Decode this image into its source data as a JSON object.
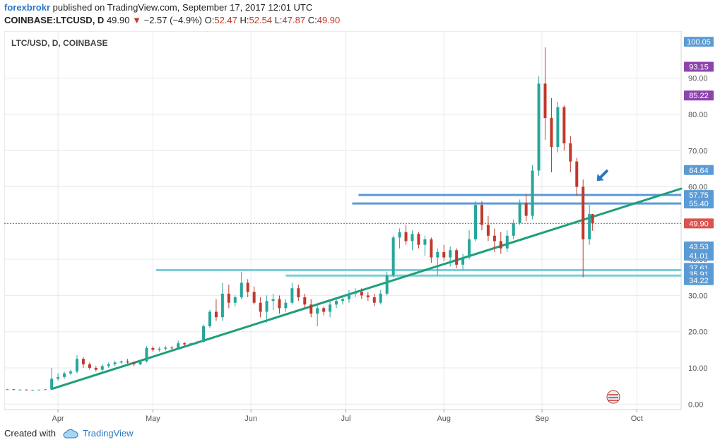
{
  "header": {
    "author": "forexbrokr",
    "published_text": "published on TradingView.com, September 17, 2017 12:01 UTC"
  },
  "quote": {
    "symbol": "COINBASE:LTCUSD, D",
    "last": "49.90",
    "change_arrow": "▼",
    "change": "−2.57 (−4.9%)",
    "open_label": "O:",
    "open": "52.47",
    "high_label": "H:",
    "high": "52.54",
    "low_label": "L:",
    "low": "47.87",
    "close_label": "C:",
    "close": "49.90"
  },
  "footer": {
    "created_with": "Created with",
    "brand": "TradingView",
    "brand_icon": "tradingview-cloud-icon"
  },
  "colors": {
    "bull": "#26a69a",
    "bear": "#c0392b",
    "trendline": "#1f9e7a",
    "resistance": "#5b9bd5",
    "support": "#7ccfd6",
    "price_line": "#e74c3c",
    "badge_blue": "#5b9bd5",
    "badge_purple": "#8e44ad",
    "badge_red": "#d9534f",
    "arrow": "#2a76c6"
  },
  "chart_data": {
    "type": "candlestick",
    "title": "LTC/USD, D, COINBASE",
    "ylim": [
      -1.5,
      103
    ],
    "xlim": [
      "2017-03-15",
      "2017-10-15"
    ],
    "y_ticks": [
      0,
      10,
      20,
      30,
      40,
      50,
      60,
      70,
      80,
      90
    ],
    "y_tick_labels": [
      "0.00",
      "10.00",
      "20.00",
      "30.00",
      "40.00",
      "50.00",
      "60.00",
      "70.00",
      "80.00",
      "90.00"
    ],
    "x_ticks": [
      {
        "date": "2017-04-01",
        "label": "Apr"
      },
      {
        "date": "2017-05-01",
        "label": "May"
      },
      {
        "date": "2017-06-01",
        "label": "Jun"
      },
      {
        "date": "2017-07-01",
        "label": "Jul"
      },
      {
        "date": "2017-08-01",
        "label": "Aug"
      },
      {
        "date": "2017-09-01",
        "label": "Sep"
      },
      {
        "date": "2017-10-01",
        "label": "Oct"
      }
    ],
    "price_badges": [
      {
        "value": 100.05,
        "label": "100.05",
        "color": "blue"
      },
      {
        "value": 93.15,
        "label": "93.15",
        "color": "purple"
      },
      {
        "value": 85.22,
        "label": "85.22",
        "color": "purple"
      },
      {
        "value": 64.64,
        "label": "64.64",
        "color": "blue"
      },
      {
        "value": 57.75,
        "label": "57.75",
        "color": "blue"
      },
      {
        "value": 55.4,
        "label": "55.40",
        "color": "blue"
      },
      {
        "value": 49.9,
        "label": "49.90",
        "color": "red"
      },
      {
        "value": 43.53,
        "label": "43.53",
        "color": "blue"
      },
      {
        "value": 41.01,
        "label": "41.01",
        "color": "blue"
      },
      {
        "value": 37.61,
        "label": "37.61",
        "color": "blue"
      },
      {
        "value": 35.91,
        "label": "35.91",
        "color": "blue"
      },
      {
        "value": 34.22,
        "label": "34.22",
        "color": "blue"
      }
    ],
    "horizontal_lines": [
      {
        "y": 57.75,
        "from": "2017-07-05",
        "style": "resistance"
      },
      {
        "y": 55.4,
        "from": "2017-07-03",
        "style": "resistance"
      },
      {
        "y": 37.0,
        "from": "2017-05-02",
        "style": "support"
      },
      {
        "y": 35.5,
        "from": "2017-06-12",
        "style": "support"
      },
      {
        "y": 49.9,
        "from": "2017-03-15",
        "style": "price"
      }
    ],
    "trendline": {
      "from": {
        "date": "2017-03-30",
        "y": 4.2
      },
      "to": {
        "date": "2017-10-15",
        "y": 59.5
      }
    },
    "annotation_arrow": {
      "date": "2017-09-17",
      "y": 62
    },
    "candles": [
      {
        "d": "2017-03-16",
        "o": 4.1,
        "h": 4.2,
        "l": 4.0,
        "c": 4.1
      },
      {
        "d": "2017-03-18",
        "o": 4.1,
        "h": 4.2,
        "l": 4.0,
        "c": 4.0
      },
      {
        "d": "2017-03-20",
        "o": 4.0,
        "h": 4.1,
        "l": 3.9,
        "c": 4.0
      },
      {
        "d": "2017-03-22",
        "o": 4.0,
        "h": 4.1,
        "l": 3.9,
        "c": 3.9
      },
      {
        "d": "2017-03-24",
        "o": 3.9,
        "h": 4.0,
        "l": 3.8,
        "c": 3.9
      },
      {
        "d": "2017-03-26",
        "o": 3.9,
        "h": 4.0,
        "l": 3.8,
        "c": 4.0
      },
      {
        "d": "2017-03-28",
        "o": 4.0,
        "h": 4.2,
        "l": 3.9,
        "c": 4.1
      },
      {
        "d": "2017-03-30",
        "o": 4.1,
        "h": 10.0,
        "l": 4.0,
        "c": 7.0
      },
      {
        "d": "2017-04-01",
        "o": 7.0,
        "h": 8.5,
        "l": 6.5,
        "c": 7.5
      },
      {
        "d": "2017-04-03",
        "o": 7.5,
        "h": 9.0,
        "l": 7.0,
        "c": 8.5
      },
      {
        "d": "2017-04-05",
        "o": 8.5,
        "h": 9.5,
        "l": 8.0,
        "c": 9.0
      },
      {
        "d": "2017-04-07",
        "o": 9.0,
        "h": 13.5,
        "l": 8.5,
        "c": 12.5
      },
      {
        "d": "2017-04-09",
        "o": 12.5,
        "h": 13.0,
        "l": 10.0,
        "c": 11.0
      },
      {
        "d": "2017-04-11",
        "o": 11.0,
        "h": 11.5,
        "l": 9.5,
        "c": 10.0
      },
      {
        "d": "2017-04-13",
        "o": 10.0,
        "h": 10.5,
        "l": 9.0,
        "c": 9.5
      },
      {
        "d": "2017-04-15",
        "o": 9.5,
        "h": 11.0,
        "l": 9.0,
        "c": 10.5
      },
      {
        "d": "2017-04-17",
        "o": 10.5,
        "h": 11.5,
        "l": 10.0,
        "c": 11.0
      },
      {
        "d": "2017-04-19",
        "o": 11.0,
        "h": 12.0,
        "l": 10.5,
        "c": 11.5
      },
      {
        "d": "2017-04-21",
        "o": 11.5,
        "h": 12.0,
        "l": 11.0,
        "c": 11.8
      },
      {
        "d": "2017-04-23",
        "o": 11.8,
        "h": 12.5,
        "l": 11.2,
        "c": 11.5
      },
      {
        "d": "2017-04-25",
        "o": 11.5,
        "h": 11.8,
        "l": 10.5,
        "c": 11.0
      },
      {
        "d": "2017-04-27",
        "o": 11.0,
        "h": 12.0,
        "l": 10.8,
        "c": 11.8
      },
      {
        "d": "2017-04-29",
        "o": 11.8,
        "h": 16.0,
        "l": 11.5,
        "c": 15.5
      },
      {
        "d": "2017-05-01",
        "o": 15.5,
        "h": 16.0,
        "l": 14.5,
        "c": 15.0
      },
      {
        "d": "2017-05-03",
        "o": 15.0,
        "h": 15.8,
        "l": 14.5,
        "c": 15.3
      },
      {
        "d": "2017-05-05",
        "o": 15.3,
        "h": 16.0,
        "l": 14.8,
        "c": 15.6
      },
      {
        "d": "2017-05-07",
        "o": 15.6,
        "h": 16.0,
        "l": 15.0,
        "c": 15.5
      },
      {
        "d": "2017-05-09",
        "o": 15.5,
        "h": 17.5,
        "l": 15.0,
        "c": 16.8
      },
      {
        "d": "2017-05-11",
        "o": 16.8,
        "h": 17.2,
        "l": 16.0,
        "c": 16.5
      },
      {
        "d": "2017-05-13",
        "o": 16.5,
        "h": 17.0,
        "l": 16.0,
        "c": 16.8
      },
      {
        "d": "2017-05-15",
        "o": 16.8,
        "h": 17.5,
        "l": 16.5,
        "c": 17.2
      },
      {
        "d": "2017-05-17",
        "o": 17.2,
        "h": 22.0,
        "l": 17.0,
        "c": 21.5
      },
      {
        "d": "2017-05-19",
        "o": 21.5,
        "h": 26.0,
        "l": 21.0,
        "c": 25.5
      },
      {
        "d": "2017-05-21",
        "o": 25.5,
        "h": 29.0,
        "l": 23.0,
        "c": 24.0
      },
      {
        "d": "2017-05-23",
        "o": 24.0,
        "h": 33.5,
        "l": 23.0,
        "c": 30.5
      },
      {
        "d": "2017-05-25",
        "o": 30.5,
        "h": 33.0,
        "l": 26.5,
        "c": 28.0
      },
      {
        "d": "2017-05-27",
        "o": 28.0,
        "h": 30.0,
        "l": 27.0,
        "c": 29.5
      },
      {
        "d": "2017-05-29",
        "o": 29.5,
        "h": 36.5,
        "l": 29.0,
        "c": 33.5
      },
      {
        "d": "2017-05-31",
        "o": 33.5,
        "h": 34.5,
        "l": 29.5,
        "c": 31.0
      },
      {
        "d": "2017-06-02",
        "o": 31.0,
        "h": 32.5,
        "l": 27.5,
        "c": 28.0
      },
      {
        "d": "2017-06-04",
        "o": 28.0,
        "h": 29.5,
        "l": 24.0,
        "c": 25.5
      },
      {
        "d": "2017-06-06",
        "o": 25.5,
        "h": 30.0,
        "l": 22.5,
        "c": 28.5
      },
      {
        "d": "2017-06-08",
        "o": 28.5,
        "h": 30.5,
        "l": 26.0,
        "c": 29.0
      },
      {
        "d": "2017-06-10",
        "o": 29.0,
        "h": 30.0,
        "l": 25.0,
        "c": 26.5
      },
      {
        "d": "2017-06-12",
        "o": 26.5,
        "h": 29.0,
        "l": 25.5,
        "c": 28.0
      },
      {
        "d": "2017-06-14",
        "o": 28.0,
        "h": 33.5,
        "l": 27.5,
        "c": 32.0
      },
      {
        "d": "2017-06-16",
        "o": 32.0,
        "h": 33.0,
        "l": 28.5,
        "c": 29.5
      },
      {
        "d": "2017-06-18",
        "o": 29.5,
        "h": 30.5,
        "l": 26.5,
        "c": 27.5
      },
      {
        "d": "2017-06-20",
        "o": 27.5,
        "h": 29.0,
        "l": 24.0,
        "c": 25.0
      },
      {
        "d": "2017-06-22",
        "o": 25.0,
        "h": 27.5,
        "l": 21.5,
        "c": 26.5
      },
      {
        "d": "2017-06-24",
        "o": 26.5,
        "h": 27.0,
        "l": 24.5,
        "c": 25.5
      },
      {
        "d": "2017-06-26",
        "o": 25.5,
        "h": 28.5,
        "l": 24.0,
        "c": 27.5
      },
      {
        "d": "2017-06-28",
        "o": 27.5,
        "h": 29.5,
        "l": 26.5,
        "c": 28.5
      },
      {
        "d": "2017-06-30",
        "o": 28.5,
        "h": 30.0,
        "l": 27.5,
        "c": 29.0
      },
      {
        "d": "2017-07-02",
        "o": 29.0,
        "h": 31.5,
        "l": 28.0,
        "c": 30.5
      },
      {
        "d": "2017-07-04",
        "o": 30.5,
        "h": 32.0,
        "l": 29.5,
        "c": 31.0
      },
      {
        "d": "2017-07-06",
        "o": 31.0,
        "h": 32.0,
        "l": 29.0,
        "c": 30.0
      },
      {
        "d": "2017-07-08",
        "o": 30.0,
        "h": 31.0,
        "l": 28.5,
        "c": 29.5
      },
      {
        "d": "2017-07-10",
        "o": 29.5,
        "h": 30.5,
        "l": 27.0,
        "c": 28.0
      },
      {
        "d": "2017-07-12",
        "o": 28.0,
        "h": 31.5,
        "l": 27.5,
        "c": 30.5
      },
      {
        "d": "2017-07-14",
        "o": 30.5,
        "h": 36.5,
        "l": 30.0,
        "c": 35.5
      },
      {
        "d": "2017-07-16",
        "o": 35.5,
        "h": 46.5,
        "l": 35.0,
        "c": 46.0
      },
      {
        "d": "2017-07-18",
        "o": 46.0,
        "h": 48.5,
        "l": 43.0,
        "c": 47.5
      },
      {
        "d": "2017-07-20",
        "o": 47.5,
        "h": 49.5,
        "l": 44.0,
        "c": 45.0
      },
      {
        "d": "2017-07-22",
        "o": 45.0,
        "h": 48.0,
        "l": 42.5,
        "c": 47.0
      },
      {
        "d": "2017-07-24",
        "o": 47.0,
        "h": 47.5,
        "l": 43.0,
        "c": 44.0
      },
      {
        "d": "2017-07-26",
        "o": 44.0,
        "h": 46.5,
        "l": 41.0,
        "c": 45.5
      },
      {
        "d": "2017-07-28",
        "o": 45.5,
        "h": 46.0,
        "l": 39.0,
        "c": 40.5
      },
      {
        "d": "2017-07-30",
        "o": 40.5,
        "h": 43.0,
        "l": 35.5,
        "c": 42.0
      },
      {
        "d": "2017-08-01",
        "o": 42.0,
        "h": 44.0,
        "l": 39.5,
        "c": 40.5
      },
      {
        "d": "2017-08-03",
        "o": 40.5,
        "h": 43.5,
        "l": 38.0,
        "c": 42.5
      },
      {
        "d": "2017-08-05",
        "o": 42.5,
        "h": 43.0,
        "l": 37.5,
        "c": 38.5
      },
      {
        "d": "2017-08-07",
        "o": 38.5,
        "h": 41.5,
        "l": 37.0,
        "c": 40.5
      },
      {
        "d": "2017-08-09",
        "o": 40.5,
        "h": 48.0,
        "l": 40.0,
        "c": 45.5
      },
      {
        "d": "2017-08-11",
        "o": 45.5,
        "h": 56.0,
        "l": 45.0,
        "c": 55.0
      },
      {
        "d": "2017-08-13",
        "o": 55.0,
        "h": 56.0,
        "l": 48.0,
        "c": 49.5
      },
      {
        "d": "2017-08-15",
        "o": 49.5,
        "h": 52.0,
        "l": 45.0,
        "c": 46.5
      },
      {
        "d": "2017-08-17",
        "o": 46.5,
        "h": 48.5,
        "l": 42.0,
        "c": 45.0
      },
      {
        "d": "2017-08-19",
        "o": 45.0,
        "h": 47.5,
        "l": 41.5,
        "c": 43.0
      },
      {
        "d": "2017-08-21",
        "o": 43.0,
        "h": 48.0,
        "l": 42.0,
        "c": 46.5
      },
      {
        "d": "2017-08-23",
        "o": 46.5,
        "h": 51.0,
        "l": 45.5,
        "c": 50.0
      },
      {
        "d": "2017-08-25",
        "o": 50.0,
        "h": 56.5,
        "l": 49.5,
        "c": 55.5
      },
      {
        "d": "2017-08-27",
        "o": 55.5,
        "h": 58.0,
        "l": 50.5,
        "c": 52.0
      },
      {
        "d": "2017-08-29",
        "o": 52.0,
        "h": 66.0,
        "l": 51.0,
        "c": 64.5
      },
      {
        "d": "2017-08-31",
        "o": 64.5,
        "h": 90.5,
        "l": 63.0,
        "c": 88.5
      },
      {
        "d": "2017-09-02",
        "o": 88.5,
        "h": 98.5,
        "l": 73.0,
        "c": 79.0
      },
      {
        "d": "2017-09-04",
        "o": 79.0,
        "h": 84.5,
        "l": 64.0,
        "c": 71.0
      },
      {
        "d": "2017-09-06",
        "o": 71.0,
        "h": 83.5,
        "l": 69.5,
        "c": 82.0
      },
      {
        "d": "2017-09-08",
        "o": 82.0,
        "h": 82.5,
        "l": 70.0,
        "c": 72.0
      },
      {
        "d": "2017-09-10",
        "o": 72.0,
        "h": 74.0,
        "l": 64.0,
        "c": 67.0
      },
      {
        "d": "2017-09-12",
        "o": 67.0,
        "h": 68.0,
        "l": 57.5,
        "c": 60.0
      },
      {
        "d": "2017-09-14",
        "o": 60.0,
        "h": 62.0,
        "l": 35.0,
        "c": 45.5
      },
      {
        "d": "2017-09-16",
        "o": 45.5,
        "h": 55.0,
        "l": 44.0,
        "c": 52.47
      },
      {
        "d": "2017-09-17",
        "o": 52.47,
        "h": 52.54,
        "l": 47.87,
        "c": 49.9
      }
    ]
  }
}
